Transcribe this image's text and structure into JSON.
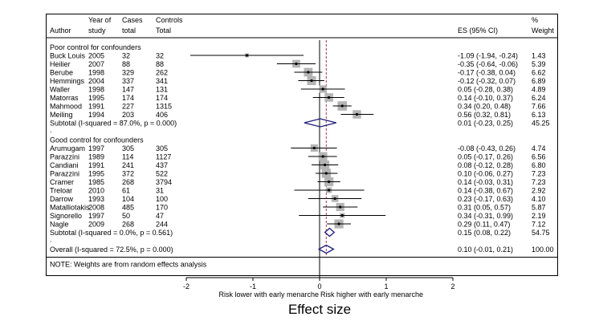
{
  "chart_data": {
    "type": "forest",
    "title": "Effect size",
    "xlabel_left": "Risk lower with early menarche",
    "xlabel_right": "Risk higher with early menarche",
    "x_ticks": [
      "-2",
      "-1",
      "0",
      "1",
      "2"
    ],
    "x_tick_values": [
      -2,
      -1,
      0,
      1,
      2
    ],
    "xlim": [
      -2,
      2
    ],
    "null_line": 0,
    "overall_reference_line": 0.1,
    "headers": {
      "author": "Author",
      "year": [
        "Year of",
        "study"
      ],
      "cases": [
        "Cases",
        "total"
      ],
      "controls": [
        "Controls",
        "Total"
      ],
      "es": "ES (95% CI)",
      "weight": [
        "%",
        "Weight"
      ]
    },
    "groups": [
      {
        "name": "Poor control for confounders",
        "studies": [
          {
            "author": "Buck Louis",
            "year": "2005",
            "cases": "32",
            "controls": "32",
            "es": -1.09,
            "lo": -1.94,
            "hi": -0.24,
            "es_text": "-1.09 (-1.94, -0.24)",
            "weight": "1.43"
          },
          {
            "author": "Heilier",
            "year": "2007",
            "cases": "88",
            "controls": "88",
            "es": -0.35,
            "lo": -0.64,
            "hi": -0.06,
            "es_text": "-0.35 (-0.64, -0.06)",
            "weight": "5.39"
          },
          {
            "author": "Berube",
            "year": "1998",
            "cases": "329",
            "controls": "262",
            "es": -0.17,
            "lo": -0.38,
            "hi": 0.04,
            "es_text": "-0.17 (-0.38, 0.04)",
            "weight": "6.62"
          },
          {
            "author": "Hemmings",
            "year": "2004",
            "cases": "337",
            "controls": "341",
            "es": -0.12,
            "lo": -0.32,
            "hi": 0.07,
            "es_text": "-0.12 (-0.32, 0.07)",
            "weight": "6.89"
          },
          {
            "author": "Waller",
            "year": "1998",
            "cases": "147",
            "controls": "131",
            "es": 0.05,
            "lo": -0.28,
            "hi": 0.38,
            "es_text": "0.05 (-0.28, 0.38)",
            "weight": "4.89"
          },
          {
            "author": "Matorras",
            "year": "1995",
            "cases": "174",
            "controls": "174",
            "es": 0.14,
            "lo": -0.1,
            "hi": 0.37,
            "es_text": "0.14 (-0.10, 0.37)",
            "weight": "6.24"
          },
          {
            "author": "Mahmood",
            "year": "1991",
            "cases": "227",
            "controls": "1315",
            "es": 0.34,
            "lo": 0.2,
            "hi": 0.48,
            "es_text": "0.34 (0.20, 0.48)",
            "weight": "7.66"
          },
          {
            "author": "Meiling",
            "year": "1994",
            "cases": "203",
            "controls": "406",
            "es": 0.56,
            "lo": 0.32,
            "hi": 0.81,
            "es_text": "0.56 (0.32, 0.81)",
            "weight": "6.13"
          }
        ],
        "subtotal": {
          "label": "Subtotal  (I-squared = 87.0%, p = 0.000)",
          "es": 0.01,
          "lo": -0.23,
          "hi": 0.25,
          "es_text": "0.01 (-0.23, 0.25)",
          "weight": "45.25"
        }
      },
      {
        "name": "Good control for confounders",
        "studies": [
          {
            "author": "Arumugam",
            "year": "1997",
            "cases": "305",
            "controls": "305",
            "es": -0.08,
            "lo": -0.43,
            "hi": 0.26,
            "es_text": "-0.08 (-0.43, 0.26)",
            "weight": "4.74"
          },
          {
            "author": "Parazzini",
            "year": "1989",
            "cases": "114",
            "controls": "1127",
            "es": 0.05,
            "lo": -0.17,
            "hi": 0.26,
            "es_text": "0.05 (-0.17, 0.26)",
            "weight": "6.56"
          },
          {
            "author": "Candiani",
            "year": "1991",
            "cases": "241",
            "controls": "437",
            "es": 0.08,
            "lo": -0.12,
            "hi": 0.28,
            "es_text": "0.08 (-0.12, 0.28)",
            "weight": "6.80"
          },
          {
            "author": "Parazzini",
            "year": "1995",
            "cases": "372",
            "controls": "522",
            "es": 0.1,
            "lo": -0.06,
            "hi": 0.27,
            "es_text": "0.10 (-0.06, 0.27)",
            "weight": "7.23"
          },
          {
            "author": "Cramer",
            "year": "1985",
            "cases": "268",
            "controls": "3794",
            "es": 0.14,
            "lo": -0.03,
            "hi": 0.31,
            "es_text": "0.14 (-0.03, 0.31)",
            "weight": "7.23"
          },
          {
            "author": "Treloar",
            "year": "2010",
            "cases": "61",
            "controls": "31",
            "es": 0.14,
            "lo": -0.38,
            "hi": 0.67,
            "es_text": "0.14 (-0.38, 0.67)",
            "weight": "2.92"
          },
          {
            "author": "Darrow",
            "year": "1993",
            "cases": "104",
            "controls": "100",
            "es": 0.23,
            "lo": -0.17,
            "hi": 0.63,
            "es_text": "0.23 (-0.17, 0.63)",
            "weight": "4.10"
          },
          {
            "author": "Matalliotakis",
            "year": "2008",
            "cases": "485",
            "controls": "170",
            "es": 0.31,
            "lo": 0.05,
            "hi": 0.57,
            "es_text": "0.31 (0.05, 0.57)",
            "weight": "5.87"
          },
          {
            "author": "Signorello",
            "year": "1997",
            "cases": "50",
            "controls": "47",
            "es": 0.34,
            "lo": -0.31,
            "hi": 0.99,
            "es_text": "0.34 (-0.31, 0.99)",
            "weight": "2.19"
          },
          {
            "author": "Nagle",
            "year": "2009",
            "cases": "268",
            "controls": "244",
            "es": 0.29,
            "lo": 0.11,
            "hi": 0.47,
            "es_text": "0.29 (0.11, 0.47)",
            "weight": "7.12"
          }
        ],
        "subtotal": {
          "label": "Subtotal  (I-squared = 0.0%, p = 0.561)",
          "es": 0.15,
          "lo": 0.08,
          "hi": 0.22,
          "es_text": "0.15 (0.08, 0.22)",
          "weight": "54.75"
        }
      }
    ],
    "overall": {
      "label": "Overall  (I-squared = 72.5%, p = 0.000)",
      "es": 0.1,
      "lo": -0.01,
      "hi": 0.21,
      "es_text": "0.10 (-0.01, 0.21)",
      "weight": "100.00"
    },
    "note": "NOTE: Weights are from random effects analysis",
    "colors": {
      "diamond": "#1f1f7a",
      "box": "#b4b4b4",
      "ref_line": "#b03050"
    }
  }
}
